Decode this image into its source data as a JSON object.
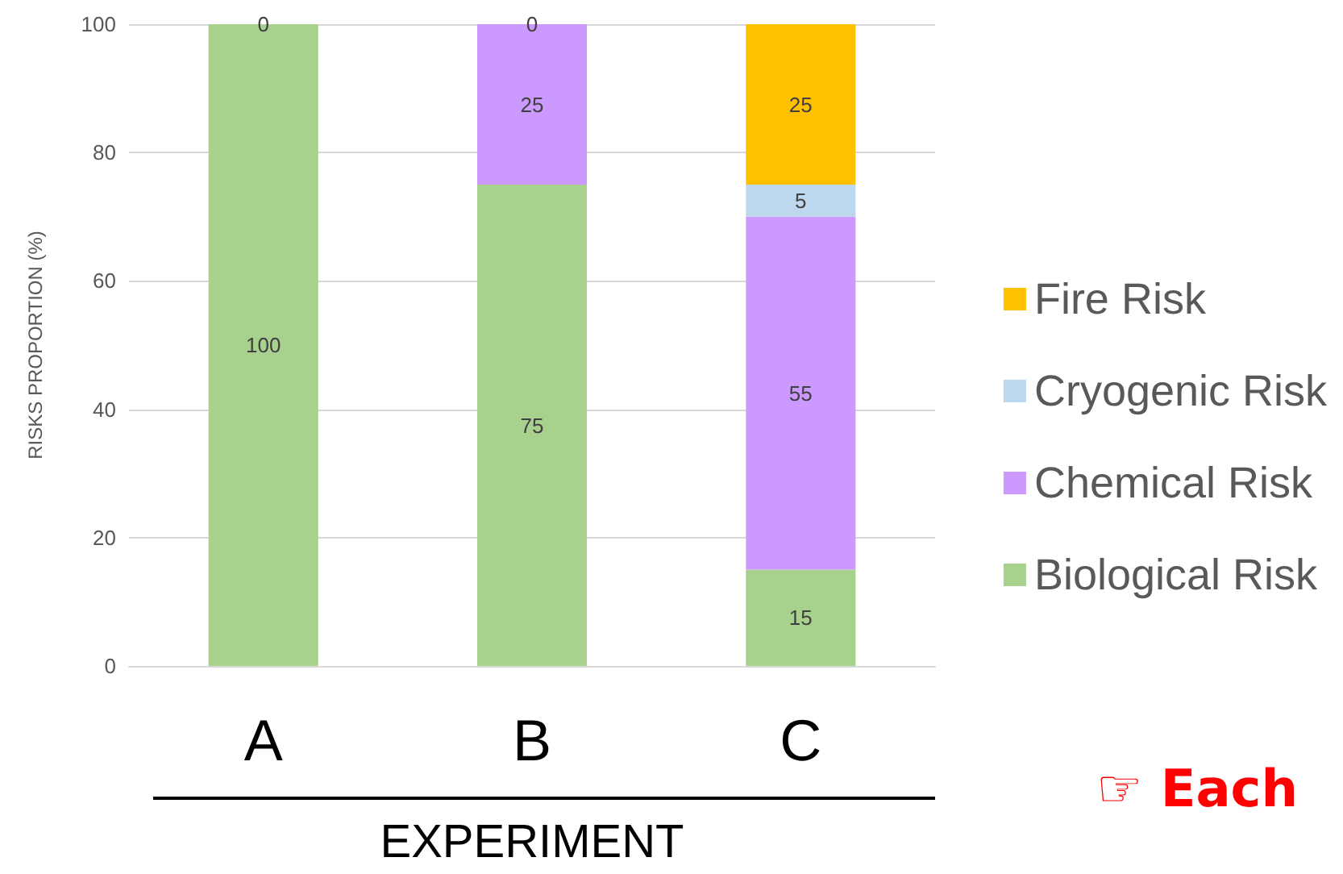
{
  "chart_data": {
    "type": "bar",
    "stacked": true,
    "xlabel": "EXPERIMENT",
    "ylabel": "RISKS PROPORTION (%)",
    "categories": [
      "A",
      "B",
      "C"
    ],
    "series": [
      {
        "name": "Biological Risk",
        "color": "#a9d18e",
        "values": [
          100,
          75,
          15
        ]
      },
      {
        "name": "Chemical Risk",
        "color": "#cc99ff",
        "values": [
          0,
          25,
          55
        ]
      },
      {
        "name": "Cryogenic Risk",
        "color": "#bdd7ee",
        "values": [
          null,
          0,
          5
        ]
      },
      {
        "name": "Fire Risk",
        "color": "#ffc000",
        "values": [
          null,
          null,
          25
        ]
      }
    ],
    "ylim": [
      0,
      100
    ],
    "yticks": [
      0,
      20,
      40,
      60,
      80,
      100
    ],
    "grid": "y",
    "legend": "right",
    "data_labels": true,
    "annotations": [
      "☞ Each"
    ]
  }
}
